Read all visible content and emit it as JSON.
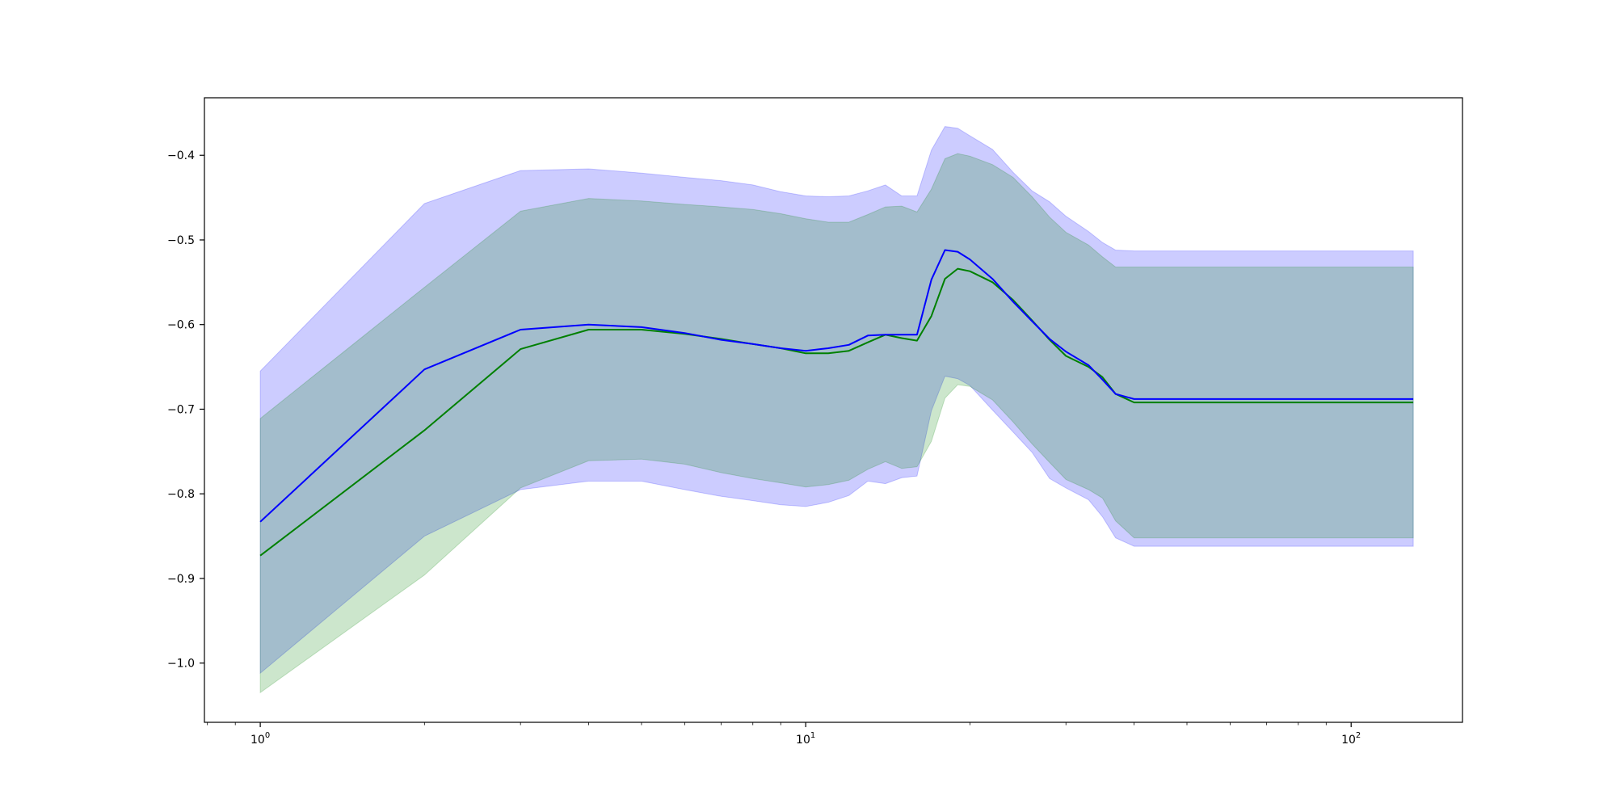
{
  "chart_data": {
    "type": "line",
    "title": "",
    "xlabel": "",
    "ylabel": "",
    "xscale": "log",
    "xlim": [
      0.79,
      160
    ],
    "ylim": [
      -1.07,
      -0.332
    ],
    "grid": false,
    "legend": "none",
    "x_ticks": [
      {
        "value": 1,
        "base": "10",
        "exp": "0"
      },
      {
        "value": 10,
        "base": "10",
        "exp": "1"
      },
      {
        "value": 100,
        "base": "10",
        "exp": "2"
      }
    ],
    "y_ticks": [
      {
        "value": -0.4,
        "label": "−0.4"
      },
      {
        "value": -0.5,
        "label": "−0.5"
      },
      {
        "value": -0.6,
        "label": "−0.6"
      },
      {
        "value": -0.7,
        "label": "−0.7"
      },
      {
        "value": -0.8,
        "label": "−0.8"
      },
      {
        "value": -0.9,
        "label": "−0.9"
      },
      {
        "value": -1.0,
        "label": "−1.0"
      }
    ],
    "series": [
      {
        "color": "#0000ff",
        "band_color": "#0000ff",
        "band_opacity": 0.2,
        "points": [
          [
            1,
            -0.833,
            -0.655,
            -1.012
          ],
          [
            2,
            -0.653,
            -0.457,
            -0.85
          ],
          [
            3,
            -0.606,
            -0.418,
            -0.795
          ],
          [
            4,
            -0.6,
            -0.416,
            -0.785
          ],
          [
            5,
            -0.603,
            -0.421,
            -0.785
          ],
          [
            6,
            -0.61,
            -0.426,
            -0.795
          ],
          [
            7,
            -0.618,
            -0.43,
            -0.803
          ],
          [
            8,
            -0.623,
            -0.435,
            -0.808
          ],
          [
            9,
            -0.628,
            -0.443,
            -0.813
          ],
          [
            10,
            -0.631,
            -0.448,
            -0.815
          ],
          [
            11,
            -0.628,
            -0.449,
            -0.81
          ],
          [
            12,
            -0.624,
            -0.448,
            -0.802
          ],
          [
            13,
            -0.613,
            -0.442,
            -0.785
          ],
          [
            14,
            -0.612,
            -0.435,
            -0.788
          ],
          [
            15,
            -0.612,
            -0.448,
            -0.781
          ],
          [
            16,
            -0.612,
            -0.448,
            -0.779
          ],
          [
            17,
            -0.547,
            -0.394,
            -0.702
          ],
          [
            18,
            -0.512,
            -0.366,
            -0.661
          ],
          [
            19,
            -0.514,
            -0.368,
            -0.664
          ],
          [
            20,
            -0.523,
            -0.377,
            -0.672
          ],
          [
            22,
            -0.546,
            -0.393,
            -0.701
          ],
          [
            24,
            -0.573,
            -0.42,
            -0.727
          ],
          [
            26,
            -0.596,
            -0.442,
            -0.751
          ],
          [
            28,
            -0.617,
            -0.455,
            -0.782
          ],
          [
            30,
            -0.632,
            -0.472,
            -0.793
          ],
          [
            33,
            -0.648,
            -0.49,
            -0.807
          ],
          [
            35,
            -0.665,
            -0.503,
            -0.827
          ],
          [
            37,
            -0.682,
            -0.512,
            -0.852
          ],
          [
            40,
            -0.688,
            -0.513,
            -0.862
          ],
          [
            130,
            -0.688,
            -0.513,
            -0.862
          ]
        ]
      },
      {
        "color": "#008000",
        "band_color": "#008000",
        "band_opacity": 0.2,
        "points": [
          [
            1,
            -0.873,
            -0.711,
            -1.035
          ],
          [
            2,
            -0.725,
            -0.556,
            -0.896
          ],
          [
            3,
            -0.629,
            -0.466,
            -0.793
          ],
          [
            4,
            -0.606,
            -0.451,
            -0.761
          ],
          [
            5,
            -0.606,
            -0.454,
            -0.759
          ],
          [
            6,
            -0.611,
            -0.458,
            -0.765
          ],
          [
            7,
            -0.617,
            -0.461,
            -0.775
          ],
          [
            8,
            -0.623,
            -0.464,
            -0.782
          ],
          [
            9,
            -0.628,
            -0.469,
            -0.787
          ],
          [
            10,
            -0.634,
            -0.475,
            -0.792
          ],
          [
            11,
            -0.634,
            -0.479,
            -0.789
          ],
          [
            12,
            -0.631,
            -0.479,
            -0.784
          ],
          [
            13,
            -0.621,
            -0.47,
            -0.771
          ],
          [
            14,
            -0.612,
            -0.461,
            -0.762
          ],
          [
            15,
            -0.616,
            -0.46,
            -0.77
          ],
          [
            16,
            -0.619,
            -0.467,
            -0.768
          ],
          [
            17,
            -0.59,
            -0.44,
            -0.738
          ],
          [
            18,
            -0.546,
            -0.404,
            -0.687
          ],
          [
            19,
            -0.534,
            -0.398,
            -0.671
          ],
          [
            20,
            -0.537,
            -0.401,
            -0.673
          ],
          [
            22,
            -0.55,
            -0.411,
            -0.689
          ],
          [
            24,
            -0.571,
            -0.426,
            -0.715
          ],
          [
            26,
            -0.595,
            -0.449,
            -0.741
          ],
          [
            28,
            -0.618,
            -0.473,
            -0.763
          ],
          [
            30,
            -0.637,
            -0.491,
            -0.783
          ],
          [
            33,
            -0.65,
            -0.506,
            -0.795
          ],
          [
            35,
            -0.662,
            -0.52,
            -0.805
          ],
          [
            37,
            -0.682,
            -0.532,
            -0.832
          ],
          [
            40,
            -0.692,
            -0.532,
            -0.852
          ],
          [
            130,
            -0.692,
            -0.532,
            -0.852
          ]
        ]
      }
    ]
  }
}
